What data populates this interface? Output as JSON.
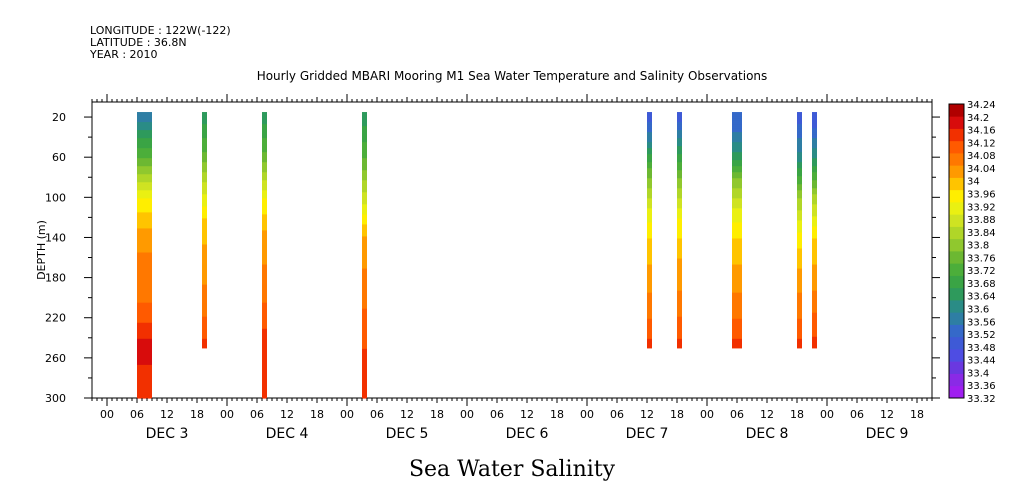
{
  "header": {
    "longitude": "LONGITUDE : 122W(-122)",
    "latitude": "LATITUDE : 36.8N",
    "year": "YEAR : 2010"
  },
  "chart_data": {
    "type": "heatmap",
    "title": "Hourly Gridded MBARI Mooring M1 Sea Water Temperature and Salinity Observations",
    "xlabel": "Sea Water Salinity",
    "ylabel": "DEPTH (m)",
    "x_hour_ticks": [
      "00",
      "06",
      "12",
      "18",
      "00",
      "06",
      "12",
      "18",
      "00",
      "06",
      "12",
      "18",
      "00",
      "06",
      "12",
      "18",
      "00",
      "06",
      "12",
      "18",
      "00",
      "06",
      "12",
      "18",
      "00",
      "06",
      "12",
      "18"
    ],
    "x_day_labels": [
      "DEC  3",
      "DEC  4",
      "DEC  5",
      "DEC  6",
      "DEC  7",
      "DEC  8",
      "DEC  9"
    ],
    "xlim_hours_from_dec3_00": [
      -3,
      165
    ],
    "ylim": [
      300,
      5
    ],
    "y_ticks": [
      20,
      60,
      100,
      140,
      180,
      220,
      260,
      300
    ],
    "colorbar": {
      "levels": [
        33.32,
        33.36,
        33.4,
        33.44,
        33.48,
        33.52,
        33.56,
        33.6,
        33.64,
        33.68,
        33.72,
        33.76,
        33.8,
        33.84,
        33.88,
        33.92,
        33.96,
        34,
        34.04,
        34.08,
        34.12,
        34.16,
        34.2,
        34.24
      ],
      "labels": [
        "34.24",
        "34.2",
        "34.16",
        "34.12",
        "34.08",
        "34.04",
        "34",
        "33.96",
        "33.92",
        "33.88",
        "33.84",
        "33.8",
        "33.76",
        "33.72",
        "33.68",
        "33.64",
        "33.6",
        "33.56",
        "33.52",
        "33.48",
        "33.44",
        "33.4",
        "33.36",
        "33.32"
      ]
    },
    "profiles": [
      {
        "start_hour": 6,
        "end_hour": 9,
        "depth_top": 20,
        "depth_bottom": 300,
        "points": [
          [
            20,
            33.58
          ],
          [
            40,
            33.68
          ],
          [
            60,
            33.76
          ],
          [
            80,
            33.86
          ],
          [
            100,
            33.96
          ],
          [
            120,
            34.02
          ],
          [
            140,
            34.06
          ],
          [
            160,
            34.09
          ],
          [
            180,
            34.09
          ],
          [
            200,
            34.11
          ],
          [
            220,
            34.15
          ],
          [
            240,
            34.2
          ],
          [
            260,
            34.21
          ],
          [
            280,
            34.18
          ],
          [
            300,
            34.16
          ]
        ]
      },
      {
        "start_hour": 19,
        "end_hour": 20,
        "depth_top": 20,
        "depth_bottom": 250,
        "points": [
          [
            20,
            33.66
          ],
          [
            60,
            33.78
          ],
          [
            90,
            33.9
          ],
          [
            120,
            34.0
          ],
          [
            160,
            34.06
          ],
          [
            200,
            34.09
          ],
          [
            230,
            34.14
          ],
          [
            250,
            34.18
          ]
        ]
      },
      {
        "start_hour": 31,
        "end_hour": 32,
        "depth_top": 20,
        "depth_bottom": 300,
        "points": [
          [
            20,
            33.66
          ],
          [
            60,
            33.78
          ],
          [
            100,
            33.96
          ],
          [
            140,
            34.06
          ],
          [
            180,
            34.09
          ],
          [
            220,
            34.14
          ],
          [
            250,
            34.2
          ],
          [
            300,
            34.18
          ]
        ]
      },
      {
        "start_hour": 51,
        "end_hour": 52,
        "depth_top": 20,
        "depth_bottom": 300,
        "points": [
          [
            20,
            33.66
          ],
          [
            60,
            33.76
          ],
          [
            100,
            33.9
          ],
          [
            140,
            34.05
          ],
          [
            180,
            34.09
          ],
          [
            220,
            34.13
          ],
          [
            260,
            34.17
          ],
          [
            300,
            34.16
          ]
        ]
      },
      {
        "start_hour": 108,
        "end_hour": 109,
        "depth_top": 20,
        "depth_bottom": 250,
        "points": [
          [
            20,
            33.5
          ],
          [
            40,
            33.58
          ],
          [
            70,
            33.76
          ],
          [
            110,
            33.92
          ],
          [
            140,
            34.0
          ],
          [
            180,
            34.06
          ],
          [
            220,
            34.12
          ],
          [
            250,
            34.18
          ]
        ]
      },
      {
        "start_hour": 114,
        "end_hour": 115,
        "depth_top": 20,
        "depth_bottom": 250,
        "points": [
          [
            20,
            33.5
          ],
          [
            40,
            33.6
          ],
          [
            80,
            33.8
          ],
          [
            120,
            33.96
          ],
          [
            160,
            34.04
          ],
          [
            200,
            34.09
          ],
          [
            230,
            34.14
          ],
          [
            250,
            34.18
          ]
        ]
      },
      {
        "start_hour": 125,
        "end_hour": 127,
        "depth_top": 20,
        "depth_bottom": 250,
        "points": [
          [
            20,
            33.52
          ],
          [
            40,
            33.58
          ],
          [
            60,
            33.66
          ],
          [
            80,
            33.8
          ],
          [
            110,
            33.92
          ],
          [
            140,
            34.0
          ],
          [
            180,
            34.06
          ],
          [
            220,
            34.12
          ],
          [
            250,
            34.18
          ]
        ]
      },
      {
        "start_hour": 138,
        "end_hour": 139,
        "depth_top": 20,
        "depth_bottom": 250,
        "points": [
          [
            20,
            33.5
          ],
          [
            60,
            33.62
          ],
          [
            100,
            33.84
          ],
          [
            140,
            33.98
          ],
          [
            180,
            34.06
          ],
          [
            220,
            34.12
          ],
          [
            250,
            34.18
          ]
        ]
      },
      {
        "start_hour": 141,
        "end_hour": 142,
        "depth_top": 20,
        "depth_bottom": 250,
        "points": [
          [
            20,
            33.48
          ],
          [
            60,
            33.64
          ],
          [
            100,
            33.86
          ],
          [
            140,
            34.0
          ],
          [
            180,
            34.06
          ],
          [
            220,
            34.13
          ],
          [
            250,
            34.18
          ]
        ]
      }
    ],
    "colors": [
      "#9f1fef",
      "#8a2ae6",
      "#6a38e0",
      "#4e4de3",
      "#3e5ad6",
      "#3569c9",
      "#2e7ea4",
      "#2a8c86",
      "#2e9a5c",
      "#3aa445",
      "#4cae3a",
      "#6cb832",
      "#90c82e",
      "#b0d628",
      "#cfe322",
      "#eaf012",
      "#ffee00",
      "#ffc400",
      "#ff9a00",
      "#ff7800",
      "#ff5a00",
      "#f23000",
      "#d80c0c",
      "#b00000"
    ]
  }
}
